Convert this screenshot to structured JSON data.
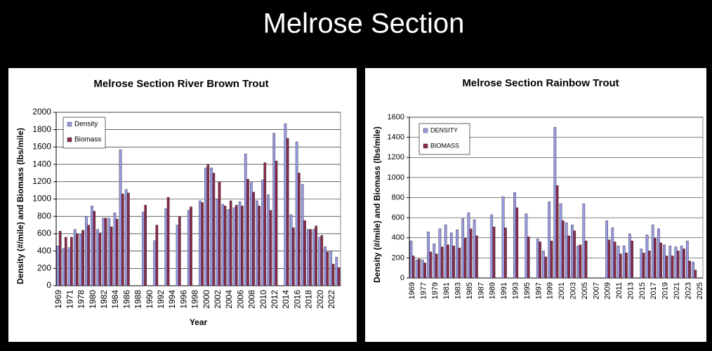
{
  "title": "Melrose Section",
  "chart_data": [
    {
      "type": "bar",
      "title": "Melrose Section River Brown Trout",
      "xlabel": "Year",
      "ylabel": "Density (#/mile) and Biomass (lbs/mile)",
      "categories": [
        1969,
        null,
        1971,
        null,
        1978,
        null,
        1980,
        null,
        1982,
        null,
        1984,
        null,
        1986,
        null,
        1988,
        null,
        1990,
        null,
        1992,
        null,
        1994,
        null,
        1996,
        null,
        1998,
        null,
        2000,
        null,
        2002,
        null,
        2004,
        null,
        2006,
        null,
        2008,
        null,
        2010,
        null,
        2012,
        null,
        2014,
        null,
        2016,
        null,
        2018,
        null,
        2020,
        null,
        2022,
        null
      ],
      "series": [
        {
          "name": "Density",
          "color": "#9a9ae6",
          "values": [
            460,
            430,
            440,
            650,
            590,
            800,
            920,
            650,
            780,
            780,
            840,
            1570,
            1110,
            null,
            null,
            850,
            null,
            520,
            null,
            890,
            null,
            700,
            null,
            870,
            null,
            980,
            1360,
            1360,
            1000,
            940,
            880,
            900,
            970,
            1520,
            1200,
            980,
            1220,
            1050,
            1760,
            null,
            1870,
            820,
            1660,
            1170,
            650,
            650,
            560,
            450,
            400,
            330
          ]
        },
        {
          "name": "Biomass",
          "color": "#8a2a4a",
          "values": [
            630,
            560,
            560,
            600,
            640,
            700,
            860,
            610,
            780,
            680,
            770,
            1060,
            1070,
            null,
            null,
            930,
            null,
            700,
            null,
            1020,
            null,
            800,
            null,
            910,
            null,
            960,
            1400,
            1300,
            1200,
            920,
            980,
            930,
            920,
            1230,
            1080,
            920,
            1420,
            870,
            1440,
            null,
            1700,
            670,
            1300,
            750,
            650,
            690,
            580,
            390,
            250,
            210
          ]
        }
      ],
      "ylim": [
        0,
        2000
      ],
      "yticks": [
        0,
        200,
        400,
        600,
        800,
        1000,
        1200,
        1400,
        1600,
        1800,
        2000
      ],
      "grid": true,
      "legend": "upper left"
    },
    {
      "type": "bar",
      "title": "Melrose Section Rainbow Trout",
      "ylabel": "Density (#/mile) and Biomass (lbs/mile)",
      "categories": [
        1969,
        null,
        1977,
        null,
        1979,
        null,
        1981,
        null,
        1983,
        null,
        1985,
        null,
        1987,
        null,
        1989,
        null,
        1991,
        null,
        1993,
        null,
        1995,
        null,
        1997,
        null,
        1999,
        null,
        2001,
        null,
        2003,
        null,
        2005,
        null,
        2007,
        null,
        2009,
        null,
        2011,
        null,
        2013,
        null,
        2015,
        null,
        2017,
        null,
        2019,
        null,
        2021,
        null,
        2023,
        null,
        2025
      ],
      "series": [
        {
          "name": "DENSITY",
          "color": "#9a9ae6",
          "values": [
            370,
            180,
            180,
            460,
            340,
            490,
            530,
            450,
            480,
            590,
            650,
            580,
            null,
            null,
            630,
            null,
            810,
            null,
            850,
            null,
            640,
            null,
            390,
            270,
            760,
            1500,
            740,
            550,
            530,
            320,
            740,
            null,
            null,
            null,
            570,
            500,
            320,
            320,
            440,
            null,
            290,
            430,
            530,
            490,
            330,
            320,
            310,
            320,
            370,
            160,
            null
          ]
        },
        {
          "name": "BIOMASS",
          "color": "#8a2a4a",
          "values": [
            220,
            190,
            150,
            260,
            240,
            310,
            330,
            320,
            300,
            400,
            490,
            420,
            null,
            null,
            510,
            null,
            500,
            null,
            700,
            null,
            410,
            null,
            360,
            210,
            370,
            920,
            570,
            420,
            470,
            330,
            370,
            null,
            null,
            null,
            380,
            360,
            240,
            250,
            370,
            null,
            250,
            270,
            400,
            350,
            220,
            220,
            270,
            290,
            170,
            80,
            null
          ]
        }
      ],
      "ylim": [
        0,
        1600
      ],
      "yticks": [
        0,
        200,
        400,
        600,
        800,
        1000,
        1200,
        1400,
        1600
      ],
      "grid": true,
      "legend": "upper left"
    }
  ]
}
